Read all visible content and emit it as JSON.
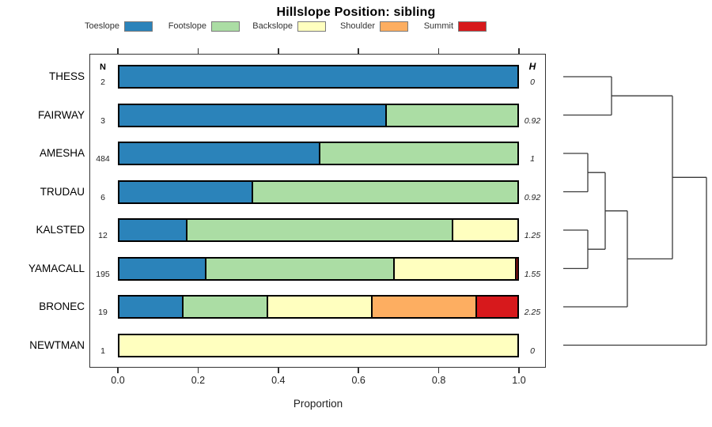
{
  "title": "Hillslope Position: sibling",
  "legend": {
    "items": [
      {
        "label": "Toeslope",
        "color": "#2B83BA"
      },
      {
        "label": "Footslope",
        "color": "#ABDDA4"
      },
      {
        "label": "Backslope",
        "color": "#FFFFBF"
      },
      {
        "label": "Shoulder",
        "color": "#FDAE61"
      },
      {
        "label": "Summit",
        "color": "#D7191C"
      }
    ]
  },
  "columns": {
    "n_header": "N",
    "h_header": "H"
  },
  "x_axis": {
    "label": "Proportion",
    "ticks": [
      "0.0",
      "0.2",
      "0.4",
      "0.6",
      "0.8",
      "1.0"
    ],
    "range": [
      0,
      1
    ]
  },
  "chart_data": {
    "type": "bar",
    "subtype": "horizontal-stacked-proportion",
    "title": "Hillslope Position: sibling",
    "xlabel": "Proportion",
    "xlim": [
      0,
      1
    ],
    "grid": false,
    "legend_position": "top",
    "categories": [
      "THESS",
      "FAIRWAY",
      "AMESHA",
      "TRUDAU",
      "KALSTED",
      "YAMACALL",
      "BRONEC",
      "NEWTMAN"
    ],
    "n_values": [
      2,
      3,
      484,
      6,
      12,
      195,
      19,
      1
    ],
    "h_values": [
      "0",
      "0.92",
      "1",
      "0.92",
      "1.25",
      "1.55",
      "2.25",
      "0"
    ],
    "series": [
      {
        "name": "Toeslope",
        "values": [
          1,
          0.667,
          0.5,
          0.333,
          0.167,
          0.215,
          0.158,
          0
        ]
      },
      {
        "name": "Footslope",
        "values": [
          0,
          0.333,
          0.5,
          0.667,
          0.667,
          0.472,
          0.211,
          0
        ]
      },
      {
        "name": "Backslope",
        "values": [
          0,
          0,
          0,
          0,
          0.166,
          0.308,
          0.263,
          1
        ]
      },
      {
        "name": "Shoulder",
        "values": [
          0,
          0,
          0,
          0,
          0,
          0,
          0.263,
          0
        ]
      },
      {
        "name": "Summit",
        "values": [
          0,
          0,
          0,
          0,
          0,
          0.005,
          0.105,
          0
        ]
      }
    ]
  },
  "dendrogram": {
    "structure": "(((THESS,FAIRWAY),(((AMESHA,TRUDAU),(KALSTED,YAMACALL)),BRONEC)),NEWTMAN)",
    "segments": [
      [
        712,
        97,
        773,
        97
      ],
      [
        712,
        145.5,
        773,
        145.5
      ],
      [
        773,
        97,
        773,
        145.5
      ],
      [
        773,
        121.2,
        850,
        121.2
      ],
      [
        712,
        194,
        743,
        194
      ],
      [
        712,
        242.5,
        743,
        242.5
      ],
      [
        743,
        194,
        743,
        242.5
      ],
      [
        743,
        218.2,
        765,
        218.2
      ],
      [
        712,
        291,
        743,
        291
      ],
      [
        712,
        339.5,
        743,
        339.5
      ],
      [
        743,
        291,
        743,
        339.5
      ],
      [
        743,
        315.2,
        765,
        315.2
      ],
      [
        765,
        218.2,
        765,
        315.2
      ],
      [
        765,
        266.7,
        793,
        266.7
      ],
      [
        712,
        388,
        793,
        388
      ],
      [
        793,
        266.7,
        793,
        388
      ],
      [
        793,
        327.4,
        850,
        327.4
      ],
      [
        850,
        121.2,
        850,
        327.4
      ],
      [
        850,
        224.3,
        893,
        224.3
      ],
      [
        712,
        436.5,
        893,
        436.5
      ],
      [
        893,
        224.3,
        893,
        436.5
      ]
    ]
  }
}
